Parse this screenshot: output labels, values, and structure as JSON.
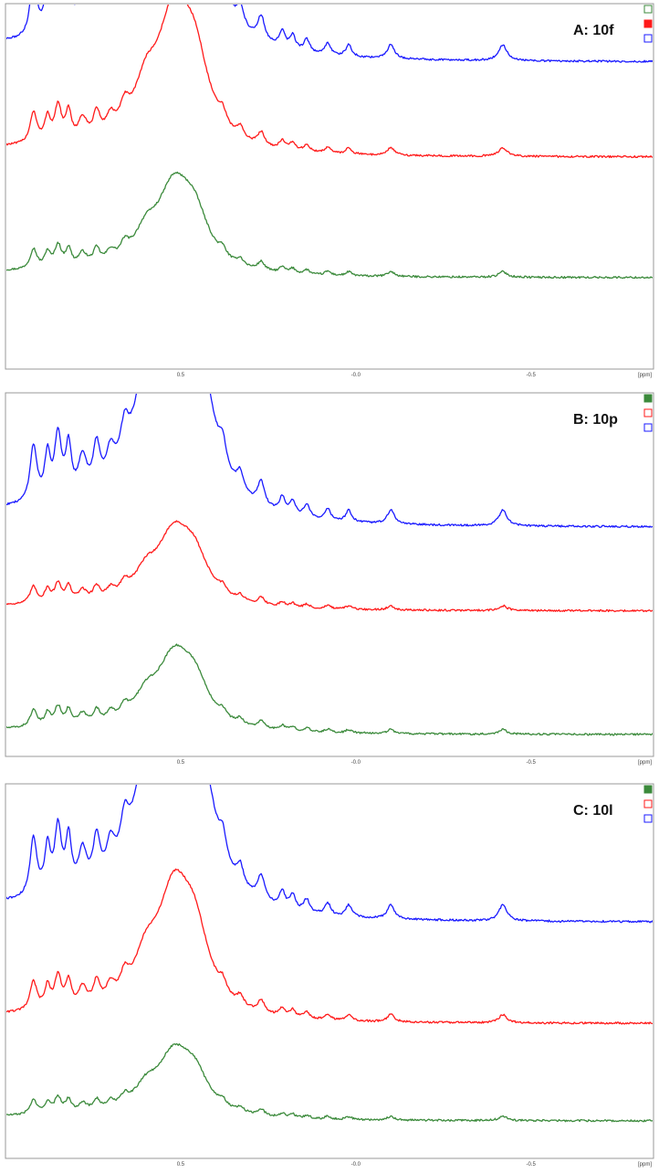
{
  "chart_data": [
    {
      "type": "line",
      "title": "A: 10f",
      "x_unit": "[ppm]",
      "x_ticks": [
        "0.5",
        "-0.0",
        "-0.5"
      ],
      "x_tick_values": [
        0.5,
        0.0,
        -0.5
      ],
      "xlim": [
        1.0,
        -0.85
      ],
      "grid": false,
      "legend_position": "top-right",
      "series": [
        {
          "color": "#3b8a3b",
          "legend_filled": false,
          "baseline": 0.25,
          "peak_scale": 0.35
        },
        {
          "color": "#ff1a1a",
          "legend_filled": true,
          "baseline": 0.58,
          "peak_scale": 0.55
        },
        {
          "color": "#1a1aff",
          "legend_filled": false,
          "baseline": 0.84,
          "peak_scale": 1.0
        }
      ]
    },
    {
      "type": "line",
      "title": "B: 10p",
      "x_unit": "[ppm]",
      "x_ticks": [
        "0.5",
        "-0.0",
        "-0.5"
      ],
      "x_tick_values": [
        0.5,
        0.0,
        -0.5
      ],
      "xlim": [
        1.0,
        -0.85
      ],
      "grid": false,
      "legend_position": "top-right",
      "series": [
        {
          "color": "#3b8a3b",
          "legend_filled": true,
          "baseline": 0.06,
          "peak_scale": 0.3
        },
        {
          "color": "#ff1a1a",
          "legend_filled": false,
          "baseline": 0.4,
          "peak_scale": 0.3
        },
        {
          "color": "#1a1aff",
          "legend_filled": false,
          "baseline": 0.63,
          "peak_scale": 1.0
        }
      ]
    },
    {
      "type": "line",
      "title": "C: 10l",
      "x_unit": "[ppm]",
      "x_ticks": [
        "0.5",
        "-0.0",
        "-0.5"
      ],
      "x_tick_values": [
        0.5,
        0.0,
        -0.5
      ],
      "xlim": [
        1.0,
        -0.85
      ],
      "grid": false,
      "legend_position": "top-right",
      "series": [
        {
          "color": "#3b8a3b",
          "legend_filled": true,
          "baseline": 0.1,
          "peak_scale": 0.25
        },
        {
          "color": "#ff1a1a",
          "legend_filled": false,
          "baseline": 0.36,
          "peak_scale": 0.5
        },
        {
          "color": "#1a1aff",
          "legend_filled": false,
          "baseline": 0.63,
          "peak_scale": 1.0
        }
      ]
    }
  ]
}
